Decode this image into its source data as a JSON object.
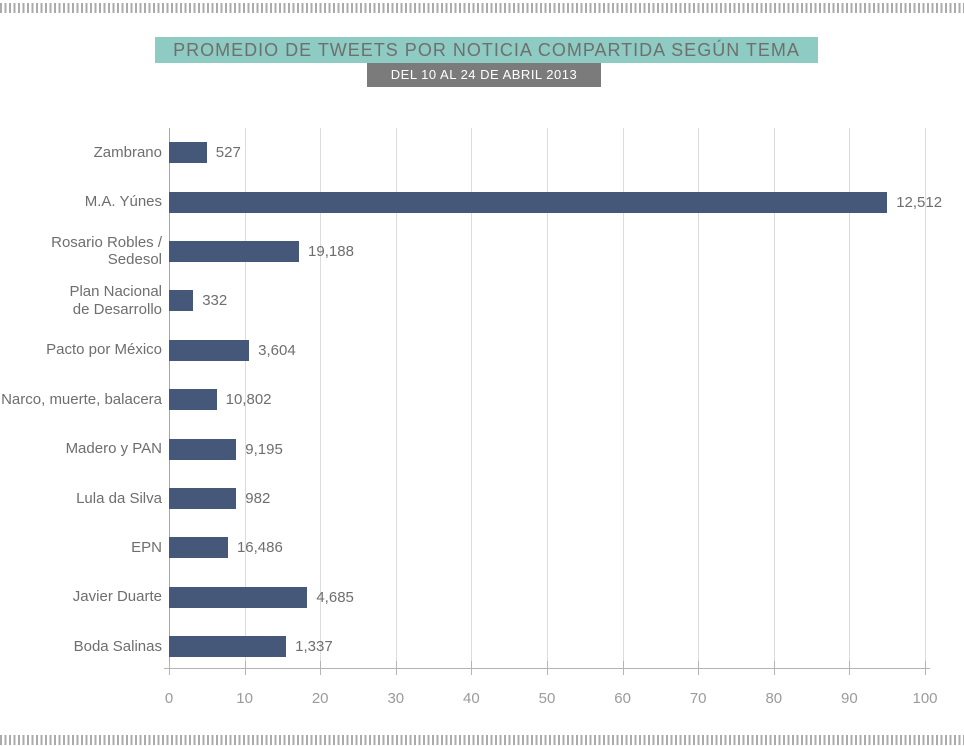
{
  "decor": {
    "top_border": "vertical-tick-pattern",
    "bottom_border": "vertical-tick-pattern",
    "pattern_color": "#ababab"
  },
  "header": {
    "title": "PROMEDIO DE TWEETS POR NOTICIA COMPARTIDA SEGÚN TEMA",
    "subtitle": "DEL 10 AL 24 DE ABRIL 2013",
    "title_bg": "#8ecbc2",
    "title_color": "#6f6f6f",
    "subtitle_bg": "#7b7b7b",
    "subtitle_color": "#ffffff"
  },
  "chart_data": {
    "type": "bar",
    "orientation": "horizontal",
    "title": "PROMEDIO DE TWEETS POR NOTICIA COMPARTIDA SEGÚN TEMA",
    "subtitle": "DEL 10 AL 24 DE ABRIL 2013",
    "categories": [
      "Zambrano",
      "M.A. Yúnes",
      "Rosario Robles / Sedesol",
      "Plan Nacional\nde Desarrollo",
      "Pacto por México",
      "Narco, muerte, balacera",
      "Madero y PAN",
      "Lula da Silva",
      "EPN",
      "Javier Duarte",
      "Boda Salinas"
    ],
    "values": [
      5,
      95,
      17.2,
      3.2,
      10.6,
      6.3,
      8.9,
      8.9,
      7.8,
      18.3,
      15.5
    ],
    "value_labels": [
      "527",
      "12,512",
      "19,188",
      "332",
      "3,604",
      "10,802",
      "9,195",
      "982",
      "16,486",
      "4,685",
      "1,337"
    ],
    "xlim": [
      0,
      100
    ],
    "xticks": [
      0,
      10,
      20,
      30,
      40,
      50,
      60,
      70,
      80,
      90,
      100
    ],
    "grid": true,
    "legend": "none",
    "bar_color": "#46587a",
    "gridline_color": "#dcdcdc",
    "zero_line_color": "#a6a6a6",
    "axis_color": "#b4b4b4",
    "tick_label_color": "#9b9b9b",
    "label_color": "#6e6e6e"
  }
}
